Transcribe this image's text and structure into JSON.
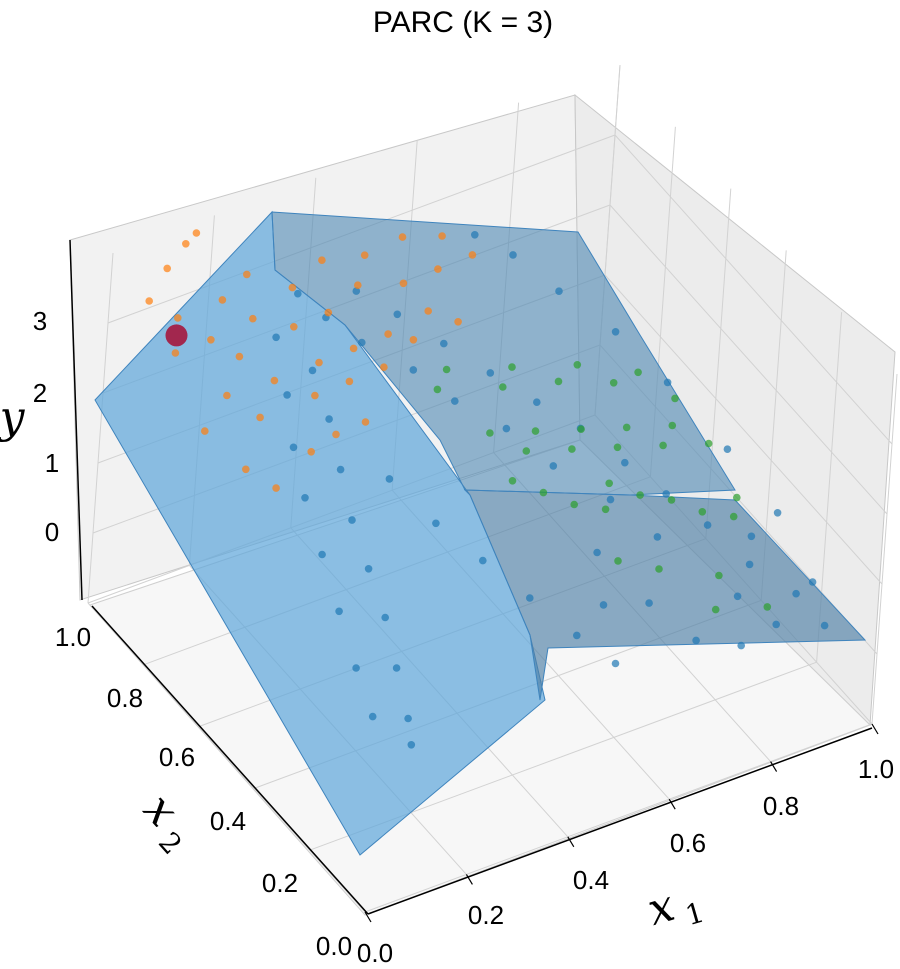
{
  "chart_data": {
    "type": "scatter",
    "title": "PARC (K = 3)",
    "xlabel": "x",
    "xlabel_sub": "1",
    "ylabel": "x",
    "ylabel_sub": "2",
    "zlabel": "y",
    "x_ticks": [
      "0.0",
      "0.2",
      "0.4",
      "0.6",
      "0.8",
      "1.0"
    ],
    "y_ticks": [
      "0.0",
      "0.2",
      "0.4",
      "0.6",
      "0.8",
      "1.0"
    ],
    "z_ticks": [
      "0",
      "1",
      "2",
      "3"
    ],
    "xlim": [
      0,
      1
    ],
    "ylim": [
      0,
      1
    ],
    "zlim": [
      -1,
      4
    ],
    "grid": true,
    "colors": {
      "cluster_1": "#1f77b4",
      "cluster_2": "#ff7f0e",
      "cluster_3": "#2ca02c",
      "surface": "#5da5da",
      "highlight": "#a5163e"
    },
    "series": [
      {
        "key": "cluster_1",
        "points": [
          [
            0.92,
            0.05,
            0.4
          ],
          [
            0.9,
            0.12,
            0.6
          ],
          [
            0.85,
            0.2,
            0.8
          ],
          [
            0.82,
            0.3,
            1.0
          ],
          [
            0.78,
            0.38,
            1.2
          ],
          [
            0.74,
            0.46,
            1.4
          ],
          [
            0.7,
            0.55,
            1.6
          ],
          [
            0.65,
            0.62,
            1.8
          ],
          [
            0.6,
            0.7,
            2.0
          ],
          [
            0.55,
            0.78,
            2.2
          ],
          [
            0.5,
            0.86,
            2.4
          ],
          [
            0.45,
            0.92,
            2.6
          ],
          [
            0.88,
            0.25,
            0.9
          ],
          [
            0.8,
            0.15,
            0.7
          ],
          [
            0.72,
            0.3,
            1.1
          ],
          [
            0.68,
            0.4,
            1.3
          ],
          [
            0.62,
            0.5,
            1.5
          ],
          [
            0.58,
            0.6,
            1.7
          ],
          [
            0.52,
            0.68,
            1.9
          ],
          [
            0.48,
            0.76,
            2.1
          ],
          [
            0.42,
            0.84,
            2.3
          ],
          [
            0.38,
            0.9,
            2.5
          ],
          [
            0.35,
            0.95,
            2.7
          ],
          [
            0.3,
            0.8,
            2.4
          ],
          [
            0.28,
            0.7,
            2.2
          ],
          [
            0.25,
            0.6,
            2.0
          ],
          [
            0.22,
            0.5,
            1.8
          ],
          [
            0.2,
            0.4,
            1.6
          ],
          [
            0.18,
            0.3,
            1.4
          ],
          [
            0.15,
            0.2,
            1.2
          ],
          [
            0.12,
            0.1,
            1.0
          ],
          [
            0.1,
            0.05,
            0.9
          ],
          [
            0.32,
            0.55,
            1.9
          ],
          [
            0.36,
            0.45,
            1.6
          ],
          [
            0.4,
            0.35,
            1.4
          ],
          [
            0.44,
            0.25,
            1.2
          ],
          [
            0.48,
            0.15,
            1.0
          ],
          [
            0.52,
            0.08,
            0.8
          ],
          [
            0.56,
            0.2,
            1.0
          ],
          [
            0.6,
            0.3,
            1.2
          ],
          [
            0.64,
            0.18,
            0.9
          ],
          [
            0.68,
            0.08,
            0.7
          ],
          [
            0.76,
            0.06,
            0.5
          ],
          [
            0.84,
            0.08,
            0.5
          ],
          [
            0.95,
            0.15,
            0.5
          ],
          [
            0.96,
            0.3,
            0.8
          ],
          [
            0.94,
            0.45,
            1.1
          ],
          [
            0.9,
            0.6,
            1.5
          ],
          [
            0.86,
            0.72,
            1.8
          ],
          [
            0.8,
            0.82,
            2.1
          ],
          [
            0.75,
            0.9,
            2.4
          ],
          [
            0.7,
            0.95,
            2.6
          ],
          [
            0.27,
            0.88,
            2.6
          ],
          [
            0.24,
            0.78,
            2.3
          ],
          [
            0.2,
            0.68,
            2.1
          ],
          [
            0.17,
            0.58,
            1.9
          ],
          [
            0.14,
            0.46,
            1.7
          ],
          [
            0.11,
            0.34,
            1.5
          ],
          [
            0.08,
            0.22,
            1.3
          ],
          [
            0.06,
            0.12,
            1.1
          ]
        ]
      },
      {
        "key": "cluster_2",
        "points": [
          [
            0.05,
            0.95,
            3.4
          ],
          [
            0.08,
            0.9,
            3.3
          ],
          [
            0.12,
            0.85,
            3.1
          ],
          [
            0.15,
            0.8,
            3.0
          ],
          [
            0.18,
            0.92,
            3.2
          ],
          [
            0.22,
            0.88,
            3.0
          ],
          [
            0.25,
            0.96,
            3.2
          ],
          [
            0.28,
            0.84,
            2.9
          ],
          [
            0.32,
            0.92,
            3.0
          ],
          [
            0.36,
            0.86,
            2.8
          ],
          [
            0.4,
            0.96,
            3.0
          ],
          [
            0.44,
            0.9,
            2.8
          ],
          [
            0.48,
            0.95,
            2.9
          ],
          [
            0.52,
            0.88,
            2.7
          ],
          [
            0.56,
            0.96,
            2.9
          ],
          [
            0.6,
            0.9,
            2.6
          ],
          [
            0.64,
            0.96,
            2.7
          ],
          [
            0.68,
            0.92,
            2.5
          ],
          [
            0.1,
            0.75,
            2.8
          ],
          [
            0.14,
            0.7,
            2.6
          ],
          [
            0.2,
            0.76,
            2.7
          ],
          [
            0.26,
            0.72,
            2.5
          ],
          [
            0.3,
            0.78,
            2.6
          ],
          [
            0.34,
            0.74,
            2.4
          ],
          [
            0.38,
            0.8,
            2.5
          ],
          [
            0.42,
            0.76,
            2.3
          ],
          [
            0.05,
            0.85,
            3.1
          ],
          [
            0.1,
            0.98,
            3.6
          ],
          [
            0.14,
            0.99,
            3.8
          ],
          [
            0.16,
            0.99,
            3.9
          ],
          [
            0.03,
            0.7,
            2.7
          ],
          [
            0.07,
            0.62,
            2.4
          ],
          [
            0.11,
            0.58,
            2.2
          ],
          [
            0.46,
            0.82,
            2.4
          ],
          [
            0.5,
            0.8,
            2.3
          ],
          [
            0.55,
            0.84,
            2.4
          ],
          [
            0.6,
            0.82,
            2.2
          ],
          [
            0.2,
            0.62,
            2.3
          ],
          [
            0.26,
            0.64,
            2.3
          ],
          [
            0.33,
            0.66,
            2.2
          ]
        ]
      },
      {
        "key": "cluster_3",
        "points": [
          [
            0.62,
            0.72,
            1.0
          ],
          [
            0.66,
            0.66,
            0.9
          ],
          [
            0.7,
            0.7,
            0.9
          ],
          [
            0.74,
            0.64,
            0.8
          ],
          [
            0.78,
            0.68,
            0.8
          ],
          [
            0.82,
            0.62,
            0.7
          ],
          [
            0.86,
            0.66,
            0.7
          ],
          [
            0.9,
            0.6,
            0.6
          ],
          [
            0.94,
            0.64,
            0.6
          ],
          [
            0.98,
            0.58,
            0.5
          ],
          [
            0.6,
            0.6,
            0.9
          ],
          [
            0.64,
            0.56,
            0.8
          ],
          [
            0.68,
            0.52,
            0.7
          ],
          [
            0.72,
            0.48,
            0.7
          ],
          [
            0.76,
            0.54,
            0.7
          ],
          [
            0.8,
            0.5,
            0.6
          ],
          [
            0.84,
            0.46,
            0.6
          ],
          [
            0.88,
            0.42,
            0.5
          ],
          [
            0.92,
            0.38,
            0.5
          ],
          [
            0.96,
            0.44,
            0.4
          ],
          [
            0.58,
            0.84,
            1.2
          ],
          [
            0.62,
            0.88,
            1.2
          ],
          [
            0.7,
            0.82,
            1.0
          ],
          [
            0.74,
            0.86,
            1.0
          ],
          [
            0.8,
            0.8,
            0.9
          ],
          [
            0.86,
            0.84,
            0.8
          ],
          [
            0.9,
            0.78,
            0.7
          ],
          [
            0.96,
            0.8,
            0.6
          ],
          [
            0.99,
            0.72,
            0.5
          ],
          [
            0.85,
            0.3,
            0.2
          ],
          [
            0.8,
            0.22,
            0.2
          ],
          [
            0.88,
            0.18,
            0.2
          ],
          [
            0.68,
            0.36,
            0.6
          ],
          [
            0.74,
            0.32,
            0.5
          ]
        ]
      }
    ],
    "highlight_point": [
      0.08,
      0.9,
      3.05
    ]
  }
}
